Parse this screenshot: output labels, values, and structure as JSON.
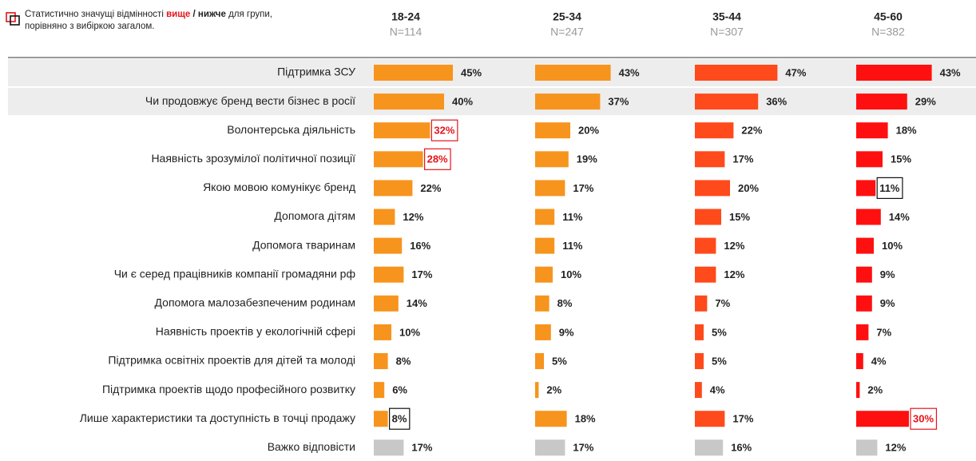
{
  "chart_data": {
    "type": "bar",
    "legend": [
      "Статистично значущі відмінності ",
      "вище",
      " / ",
      "нижче",
      " для групи,",
      "порівняно з вибіркою загалом."
    ],
    "higher_color": "#e5141b",
    "lower_color": "#111111",
    "na_color": "#c8c8c8",
    "shaded_rows": [
      0,
      1
    ],
    "categories": [
      "Підтримка ЗСУ",
      "Чи продовжує бренд вести бізнес в росії",
      "Волонтерська діяльність",
      "Наявність зрозумілої політичної позиції",
      "Якою мовою комунікує бренд",
      "Допомога дітям",
      "Допомога тваринам",
      "Чи є серед працівників компанії громадяни рф",
      "Допомога малозабезпеченим родинам",
      "Наявність проектів у екологічній сфері",
      "Підтримка освітніх проектів для дітей та молоді",
      "Підтримка проектів щодо професійного розвитку",
      "Лише характеристики та доступність в точці продажу",
      "Важко відповісти"
    ],
    "na_index": 13,
    "series": [
      {
        "name": "18-24",
        "n": "N=114",
        "color": "#f7941d",
        "values": [
          45,
          40,
          32,
          28,
          22,
          12,
          16,
          17,
          14,
          10,
          8,
          6,
          8,
          17
        ],
        "value_labels": [
          "45%",
          "40%",
          "32%",
          "28%",
          "22%",
          "12%",
          "16%",
          "17%",
          "14%",
          "10%",
          "8%",
          "6%",
          "8%",
          "17%"
        ],
        "higher": [
          2,
          3
        ],
        "lower": [
          12
        ]
      },
      {
        "name": "25-34",
        "n": "N=247",
        "color": "#f7941d",
        "values": [
          43,
          37,
          20,
          19,
          17,
          11,
          11,
          10,
          8,
          9,
          5,
          2,
          18,
          17
        ],
        "value_labels": [
          "43%",
          "37%",
          "20%",
          "19%",
          "17%",
          "11%",
          "11%",
          "10%",
          "8%",
          "9%",
          "5%",
          "2%",
          "18%",
          "17%"
        ],
        "higher": [],
        "lower": []
      },
      {
        "name": "35-44",
        "n": "N=307",
        "color": "#ff4a1c",
        "values": [
          47,
          36,
          22,
          17,
          20,
          15,
          12,
          12,
          7,
          5,
          5,
          4,
          17,
          16
        ],
        "value_labels": [
          "47%",
          "36%",
          "22%",
          "17%",
          "20%",
          "15%",
          "12%",
          "12%",
          "7%",
          "5%",
          "5%",
          "4%",
          "17%",
          "16%"
        ],
        "higher": [],
        "lower": []
      },
      {
        "name": "45-60",
        "n": "N=382",
        "color": "#ff1010",
        "values": [
          43,
          29,
          18,
          15,
          11,
          14,
          10,
          9,
          9,
          7,
          4,
          2,
          30,
          12
        ],
        "value_labels": [
          "43%",
          "29%",
          "18%",
          "15%",
          "11%",
          "14%",
          "10%",
          "9%",
          "9%",
          "7%",
          "4%",
          "2%",
          "30%",
          "12%"
        ],
        "higher": [
          12
        ],
        "lower": [
          4
        ]
      }
    ]
  }
}
